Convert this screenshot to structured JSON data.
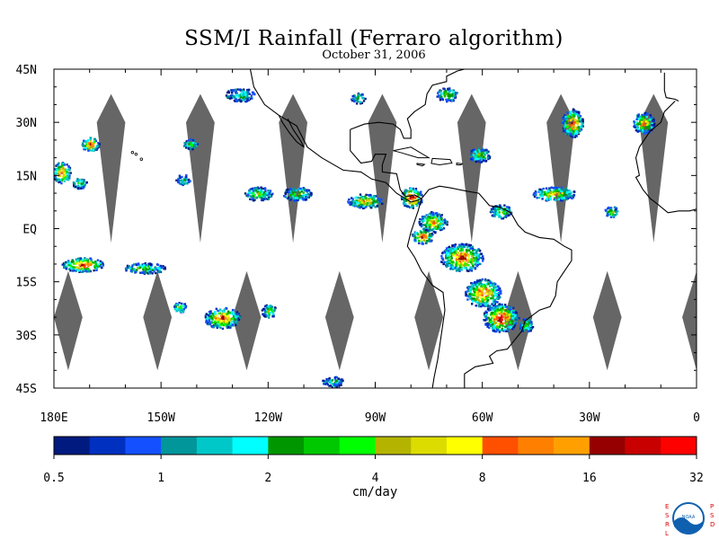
{
  "title": "SSM/I Rainfall (Ferraro algorithm)",
  "date": "October 31, 2006",
  "map": {
    "lon_range": [
      -180,
      0
    ],
    "lat_range": [
      -45,
      45
    ],
    "lat_ticks": [
      {
        "value": 45,
        "label": "45N"
      },
      {
        "value": 30,
        "label": "30N"
      },
      {
        "value": 15,
        "label": "15N"
      },
      {
        "value": 0,
        "label": "EQ"
      },
      {
        "value": -15,
        "label": "15S"
      },
      {
        "value": -30,
        "label": "30S"
      },
      {
        "value": -45,
        "label": "45S"
      }
    ],
    "lon_ticks": [
      {
        "value": -180,
        "label": "180E"
      },
      {
        "value": -150,
        "label": "150W"
      },
      {
        "value": -120,
        "label": "120W"
      },
      {
        "value": -90,
        "label": "90W"
      },
      {
        "value": -60,
        "label": "60W"
      },
      {
        "value": -30,
        "label": "30W"
      },
      {
        "value": 0,
        "label": "0"
      }
    ],
    "no_data_color": "#666666",
    "coastline_color": "#000000"
  },
  "colorbar": {
    "unit_label": "cm/day",
    "colors": [
      "#001a80",
      "#0030c0",
      "#1450ff",
      "#00969a",
      "#00c8c8",
      "#00ffff",
      "#009600",
      "#00c800",
      "#00ff00",
      "#b4b400",
      "#dcdc00",
      "#ffff00",
      "#ff5000",
      "#ff8000",
      "#ffa000",
      "#960000",
      "#c80000",
      "#ff0000"
    ],
    "tick_labels": [
      "0.5",
      "1",
      "2",
      "4",
      "8",
      "16",
      "32"
    ]
  },
  "logo": {
    "left_text": "ESRL",
    "right_text": "PSD",
    "center_text": "NOAA"
  },
  "chart_data": {
    "type": "heatmap",
    "title": "SSM/I Rainfall (Ferraro algorithm)",
    "subtitle": "October 31, 2006",
    "xlabel": "",
    "ylabel": "",
    "x_range": [
      -180,
      0
    ],
    "y_range": [
      -45,
      45
    ],
    "colorbar_label": "cm/day",
    "colorbar_ticks": [
      0.5,
      1,
      2,
      4,
      8,
      16,
      32
    ],
    "rain_areas": [
      {
        "lon": -178,
        "lat": 16,
        "rlon": 2.5,
        "rlat": 3,
        "max": 16
      },
      {
        "lon": -170,
        "lat": 24,
        "rlon": 2.5,
        "rlat": 2,
        "max": 32
      },
      {
        "lon": -173,
        "lat": 13,
        "rlon": 2,
        "rlat": 1.5,
        "max": 4
      },
      {
        "lon": -142,
        "lat": 24,
        "rlon": 2,
        "rlat": 1.5,
        "max": 4
      },
      {
        "lon": -144,
        "lat": 14,
        "rlon": 2,
        "rlat": 1.5,
        "max": 2
      },
      {
        "lon": -128,
        "lat": 38,
        "rlon": 4,
        "rlat": 2,
        "max": 2
      },
      {
        "lon": -123,
        "lat": 10,
        "rlon": 4,
        "rlat": 2,
        "max": 4
      },
      {
        "lon": -112,
        "lat": 10,
        "rlon": 4,
        "rlat": 2,
        "max": 4
      },
      {
        "lon": -93,
        "lat": 8,
        "rlon": 5,
        "rlat": 2,
        "max": 8
      },
      {
        "lon": -80,
        "lat": 9,
        "rlon": 3,
        "rlat": 3,
        "max": 32
      },
      {
        "lon": -74,
        "lat": 2,
        "rlon": 4,
        "rlat": 3,
        "max": 8
      },
      {
        "lon": -77,
        "lat": -2,
        "rlon": 3,
        "rlat": 2,
        "max": 32
      },
      {
        "lon": -66,
        "lat": -8,
        "rlon": 6,
        "rlat": 4,
        "max": 16
      },
      {
        "lon": -60,
        "lat": -18,
        "rlon": 5,
        "rlat": 4,
        "max": 16
      },
      {
        "lon": -55,
        "lat": -25,
        "rlon": 5,
        "rlat": 4,
        "max": 32
      },
      {
        "lon": -172,
        "lat": -10,
        "rlon": 6,
        "rlat": 2,
        "max": 32
      },
      {
        "lon": -155,
        "lat": -11,
        "rlon": 6,
        "rlat": 1.5,
        "max": 4
      },
      {
        "lon": -133,
        "lat": -25,
        "rlon": 5,
        "rlat": 3,
        "max": 16
      },
      {
        "lon": -120,
        "lat": -23,
        "rlon": 2,
        "rlat": 2,
        "max": 4
      },
      {
        "lon": -102,
        "lat": -43,
        "rlon": 3,
        "rlat": 1.5,
        "max": 2
      },
      {
        "lon": -35,
        "lat": 30,
        "rlon": 3,
        "rlat": 4,
        "max": 16
      },
      {
        "lon": -15,
        "lat": 30,
        "rlon": 3,
        "rlat": 3,
        "max": 8
      },
      {
        "lon": -40,
        "lat": 10,
        "rlon": 6,
        "rlat": 2,
        "max": 8
      },
      {
        "lon": -48,
        "lat": -27,
        "rlon": 2,
        "rlat": 2,
        "max": 4
      },
      {
        "lon": -61,
        "lat": 21,
        "rlon": 3,
        "rlat": 2,
        "max": 4
      },
      {
        "lon": -95,
        "lat": 37,
        "rlon": 2,
        "rlat": 1.5,
        "max": 2
      },
      {
        "lon": -70,
        "lat": 38,
        "rlon": 3,
        "rlat": 2,
        "max": 4
      },
      {
        "lon": -24,
        "lat": 5,
        "rlon": 2,
        "rlat": 1.5,
        "max": 4
      },
      {
        "lon": -145,
        "lat": -22,
        "rlon": 2,
        "rlat": 1.5,
        "max": 4
      },
      {
        "lon": -55,
        "lat": 5,
        "rlon": 3,
        "rlat": 2,
        "max": 4
      }
    ],
    "no_data_swaths": [
      {
        "center_lon": -164,
        "n": [
          30,
          36
        ],
        "s": [
          -2,
          2
        ]
      },
      {
        "center_lon": -139,
        "n": [
          30,
          36
        ],
        "s": [
          -2,
          2
        ]
      },
      {
        "center_lon": -113,
        "n": [
          30,
          36
        ],
        "s": [
          -2,
          2
        ]
      },
      {
        "center_lon": -88,
        "n": [
          30,
          36
        ],
        "s": [
          -2,
          2
        ]
      },
      {
        "center_lon": -63,
        "n": [
          30,
          36
        ],
        "s": [
          -2,
          2
        ]
      },
      {
        "center_lon": -38,
        "n": [
          30,
          36
        ],
        "s": [
          -2,
          2
        ]
      },
      {
        "center_lon": -12,
        "n": [
          30,
          36
        ],
        "s": [
          -2,
          2
        ]
      },
      {
        "center_lon": -176,
        "n": [
          -40,
          -12
        ],
        "s": [
          -40,
          -40
        ]
      },
      {
        "center_lon": -151,
        "n": [
          -40,
          -12
        ],
        "s": [
          -40,
          -40
        ]
      },
      {
        "center_lon": -126,
        "n": [
          -40,
          -12
        ],
        "s": [
          -40,
          -40
        ]
      },
      {
        "center_lon": -100,
        "n": [
          -40,
          -12
        ],
        "s": [
          -40,
          -40
        ]
      },
      {
        "center_lon": -75,
        "n": [
          -40,
          -12
        ],
        "s": [
          -40,
          -40
        ]
      },
      {
        "center_lon": -50,
        "n": [
          -40,
          -12
        ],
        "s": [
          -40,
          -40
        ]
      },
      {
        "center_lon": -25,
        "n": [
          -40,
          -12
        ],
        "s": [
          -40,
          -40
        ]
      },
      {
        "center_lon": 0,
        "n": [
          -40,
          -12
        ],
        "s": [
          -40,
          -40
        ]
      }
    ]
  }
}
